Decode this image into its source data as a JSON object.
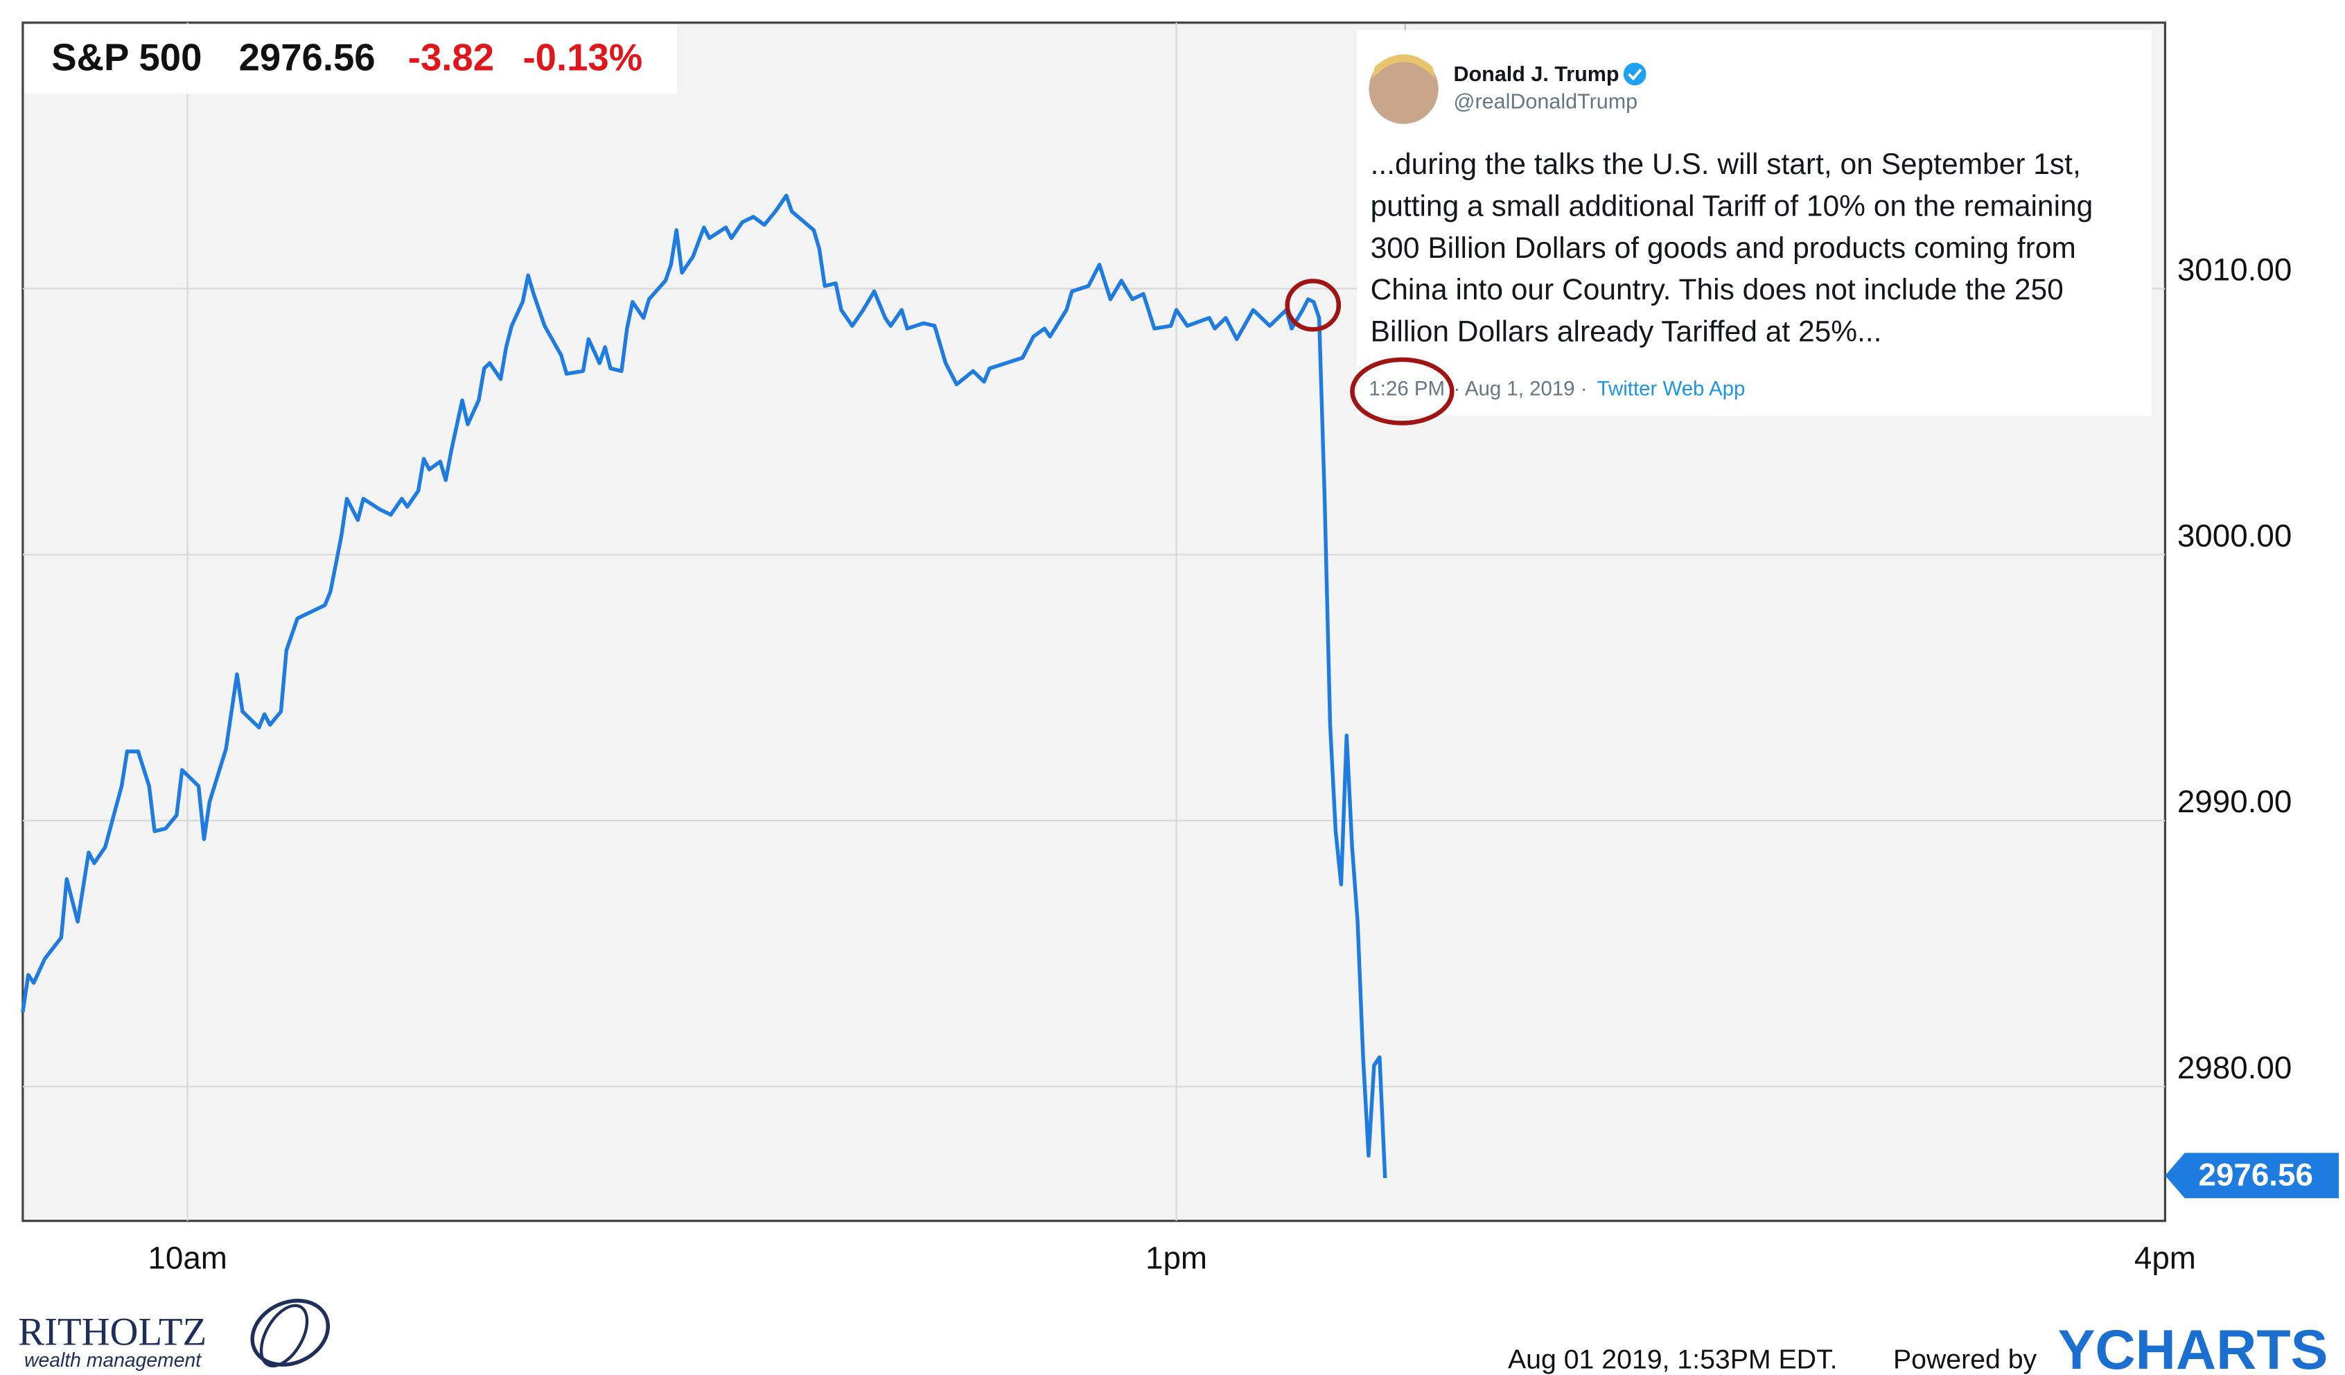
{
  "chart_data": {
    "type": "line",
    "title": "S&P 500",
    "price": 2976.56,
    "change": -3.82,
    "change_pct": "-0.13%",
    "color": "#1e7be0",
    "x": [
      570,
      571,
      572,
      574,
      577,
      578,
      580,
      582,
      583,
      585,
      588,
      589,
      591,
      593,
      594,
      596,
      598,
      599,
      602,
      603,
      604,
      607,
      609,
      610,
      613,
      614,
      615,
      617,
      618,
      620,
      622,
      625,
      626,
      628,
      629,
      631,
      632,
      635,
      637,
      639,
      640,
      642,
      643,
      644,
      646,
      647,
      648,
      650,
      651,
      653,
      654,
      655,
      657,
      658,
      659,
      661,
      662,
      663,
      665,
      668,
      669,
      672,
      673,
      675,
      676,
      677,
      679,
      680,
      681,
      683,
      684,
      687,
      688,
      689,
      690,
      692,
      694,
      695,
      698,
      699,
      701,
      703,
      705,
      707,
      709,
      710,
      714,
      715,
      716,
      718,
      719,
      721,
      723,
      725,
      727,
      728,
      730,
      731,
      734,
      736,
      738,
      740,
      743,
      745,
      746,
      749,
      752,
      754,
      756,
      757,
      760,
      761,
      764,
      766,
      768,
      770,
      772,
      774,
      776,
      779,
      780,
      782,
      786,
      787,
      789,
      791,
      794,
      797,
      800,
      801,
      803,
      804,
      805,
      806,
      807,
      808,
      809,
      810,
      811,
      812,
      813,
      814,
      815,
      816,
      817,
      818
    ],
    "values": [
      2982.8,
      2984.2,
      2983.9,
      2984.8,
      2985.6,
      2987.8,
      2986.2,
      2988.8,
      2988.4,
      2989.0,
      2991.3,
      2992.6,
      2992.6,
      2991.3,
      2989.6,
      2989.7,
      2990.2,
      2991.9,
      2991.3,
      2989.3,
      2990.7,
      2992.7,
      2995.5,
      2994.1,
      2993.5,
      2994.0,
      2993.6,
      2994.1,
      2996.4,
      2997.6,
      2997.8,
      2998.1,
      2998.6,
      3000.7,
      3002.1,
      3001.3,
      3002.1,
      3001.7,
      3001.5,
      3002.1,
      3001.8,
      3002.4,
      3003.6,
      3003.2,
      3003.5,
      3002.8,
      3003.9,
      3005.8,
      3004.9,
      3005.8,
      3007.0,
      3007.2,
      3006.6,
      3007.8,
      3008.6,
      3009.5,
      3010.5,
      3009.8,
      3008.6,
      3007.5,
      3006.8,
      3006.9,
      3008.1,
      3007.2,
      3007.8,
      3007.0,
      3006.9,
      3008.5,
      3009.5,
      3008.9,
      3009.6,
      3010.3,
      3010.9,
      3012.2,
      3010.6,
      3011.2,
      3012.3,
      3011.9,
      3012.3,
      3011.9,
      3012.5,
      3012.7,
      3012.4,
      3012.9,
      3013.5,
      3012.9,
      3012.2,
      3011.5,
      3010.1,
      3010.2,
      3009.2,
      3008.6,
      3009.2,
      3009.9,
      3008.9,
      3008.6,
      3009.2,
      3008.5,
      3008.7,
      3008.6,
      3007.2,
      3006.4,
      3006.9,
      3006.5,
      3007.0,
      3007.2,
      3007.4,
      3008.2,
      3008.5,
      3008.2,
      3009.2,
      3009.9,
      3010.1,
      3010.9,
      3009.6,
      3010.3,
      3009.6,
      3009.8,
      3008.5,
      3008.6,
      3009.2,
      3008.6,
      3008.9,
      3008.5,
      3008.9,
      3008.1,
      3009.2,
      3008.6,
      3009.2,
      3008.5,
      3009.2,
      3009.6,
      3009.5,
      3008.9,
      3002.1,
      2993.6,
      2989.6,
      2987.6,
      2993.2,
      2989.0,
      2986.2,
      2981.1,
      2977.4,
      2980.8,
      2981.1,
      2976.56
    ],
    "xlim": [
      570,
      960
    ],
    "ylim": [
      2974.95,
      3020
    ],
    "xticks": [
      {
        "value": 600,
        "label": "10am"
      },
      {
        "value": 780,
        "label": "1pm"
      },
      {
        "value": 960,
        "label": "4pm"
      }
    ],
    "yticks": [
      {
        "value": 2980,
        "label": "2980.00"
      },
      {
        "value": 2990,
        "label": "2990.00"
      },
      {
        "value": 3000,
        "label": "3000.00"
      },
      {
        "value": 3010,
        "label": "3010.00"
      }
    ],
    "grid": true
  },
  "tweet": {
    "name": "Donald J. Trump",
    "handle": "@realDonaldTrump",
    "lines": [
      "...during the talks the U.S. will start, on September 1st,",
      "putting a small additional Tariff of 10% on the remaining",
      "300 Billion Dollars of goods and products coming from",
      "China into our Country. This does not include the 250",
      "Billion Dollars already Tariffed at 25%..."
    ],
    "time": "1:26 PM",
    "date": "· Aug 1, 2019 ·",
    "source": "Twitter Web App"
  },
  "logo": {
    "name": "RITHOLTZ",
    "tagline": "wealth management"
  },
  "footer": {
    "timestamp": "Aug 01 2019, 1:53PM EDT.",
    "powered": "Powered by",
    "brand": "YCHARTS"
  }
}
